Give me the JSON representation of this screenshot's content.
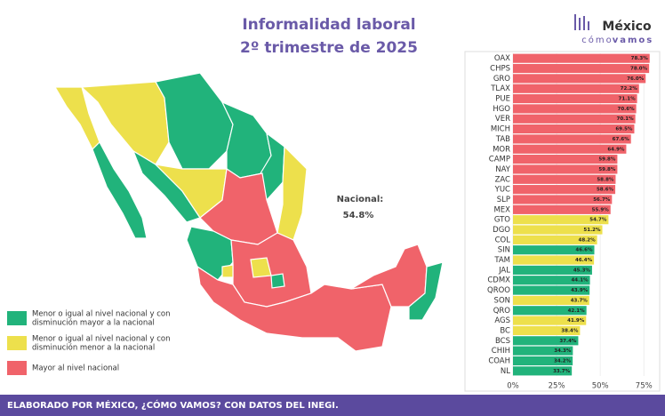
{
  "chart_data": {
    "type": "bar",
    "title": "Informalidad laboral",
    "subtitle": "2º trimestre de 2025",
    "logo": {
      "name": "México",
      "tag1": "cómo",
      "tag2": "vamos"
    },
    "annotation": {
      "label": "Nacional:",
      "value": "54.8%"
    },
    "footer": "ELABORADO POR MÉXICO, ¿CÓMO VAMOS? CON DATOS DEL INEGI.",
    "legend": [
      {
        "name": "Menor o igual al nivel nacional y con",
        "name2": "disminución mayor a la nacional",
        "color": "#21b37b"
      },
      {
        "name": "Menor o igual al nivel nacional y con",
        "name2": "disminución menor a la nacional",
        "color": "#ede04c"
      },
      {
        "name": "Mayor al nivel nacional",
        "color": "#f0636a"
      }
    ],
    "categories": [
      "OAX",
      "CHPS",
      "GRO",
      "TLAX",
      "PUE",
      "HGO",
      "VER",
      "MICH",
      "TAB",
      "MOR",
      "CAMP",
      "NAY",
      "ZAC",
      "YUC",
      "SLP",
      "MEX",
      "GTO",
      "DGO",
      "COL",
      "SIN",
      "TAM",
      "JAL",
      "CDMX",
      "QROO",
      "SON",
      "QRO",
      "AGS",
      "BC",
      "BCS",
      "CHIH",
      "COAH",
      "NL"
    ],
    "values": [
      78.3,
      78.0,
      76.0,
      72.2,
      71.1,
      70.6,
      70.1,
      69.5,
      67.6,
      64.9,
      59.8,
      59.8,
      58.8,
      58.6,
      56.7,
      55.9,
      54.7,
      51.2,
      48.2,
      46.6,
      46.4,
      45.3,
      44.1,
      43.9,
      43.7,
      42.1,
      41.9,
      38.4,
      37.4,
      34.3,
      34.2,
      33.7
    ],
    "value_labels": [
      "78.3%",
      "78.0%",
      "76.0%",
      "72.2%",
      "71.1%",
      "70.6%",
      "70.1%",
      "69.5%",
      "67.6%",
      "64.9%",
      "59.8%",
      "59.8%",
      "58.8%",
      "58.6%",
      "56.7%",
      "55.9%",
      "54.7%",
      "51.2%",
      "48.2%",
      "46.6%",
      "46.4%",
      "45.3%",
      "44.1%",
      "43.9%",
      "43.7%",
      "42.1%",
      "41.9%",
      "38.4%",
      "37.4%",
      "34.3%",
      "34.2%",
      "33.7%"
    ],
    "colors": [
      "#f0636a",
      "#f0636a",
      "#f0636a",
      "#f0636a",
      "#f0636a",
      "#f0636a",
      "#f0636a",
      "#f0636a",
      "#f0636a",
      "#f0636a",
      "#f0636a",
      "#f0636a",
      "#f0636a",
      "#f0636a",
      "#f0636a",
      "#f0636a",
      "#ede04c",
      "#ede04c",
      "#ede04c",
      "#21b37b",
      "#ede04c",
      "#21b37b",
      "#21b37b",
      "#21b37b",
      "#ede04c",
      "#21b37b",
      "#ede04c",
      "#ede04c",
      "#21b37b",
      "#21b37b",
      "#21b37b",
      "#21b37b"
    ],
    "xlim": [
      0,
      82
    ],
    "xticks": [
      {
        "value": 0,
        "label": "0%"
      },
      {
        "value": 25,
        "label": "25%"
      },
      {
        "value": 50,
        "label": "50%"
      },
      {
        "value": 75,
        "label": "75%"
      }
    ]
  }
}
